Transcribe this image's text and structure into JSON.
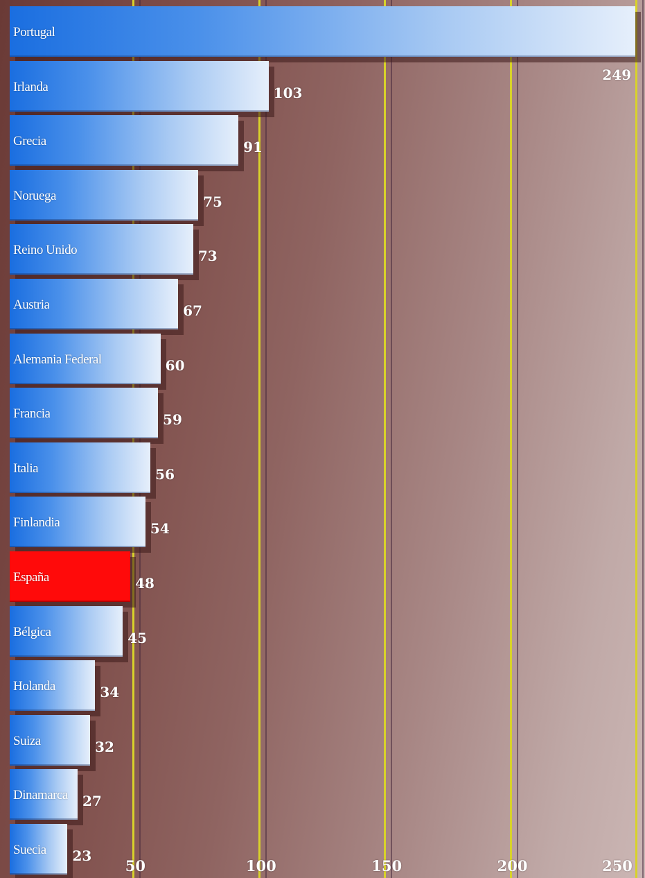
{
  "chart_data": {
    "type": "bar",
    "orientation": "horizontal",
    "categories": [
      "Portugal",
      "Irlanda",
      "Grecia",
      "Noruega",
      "Reino Unido",
      "Austria",
      "Alemania Federal",
      "Francia",
      "Italia",
      "Finlandia",
      "España",
      "Bélgica",
      "Holanda",
      "Suiza",
      "Dinamarca",
      "Suecia"
    ],
    "values": [
      249,
      103,
      91,
      75,
      73,
      67,
      60,
      59,
      56,
      54,
      48,
      45,
      34,
      32,
      27,
      23
    ],
    "highlight": "España",
    "xlim": [
      0,
      250
    ],
    "xticks": [
      "50",
      "100",
      "150",
      "200",
      "250"
    ],
    "grid": true,
    "colors": {
      "bar": "#4a90ea",
      "highlight": "#ff0a0a",
      "gridline": "#d8d22a",
      "background": "#8f6461"
    }
  }
}
